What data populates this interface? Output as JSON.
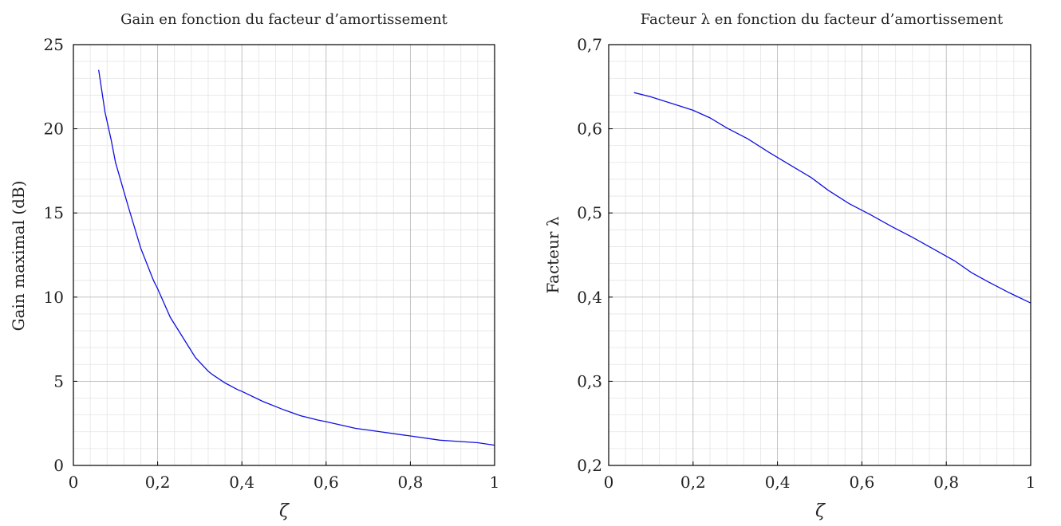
{
  "chart_data": [
    {
      "type": "line",
      "title": "Gain en fonction du facteur d’amortissement",
      "xlabel": "ζ",
      "ylabel": "Gain maximal (dB)",
      "xlim": [
        0,
        1
      ],
      "ylim": [
        0,
        25
      ],
      "grid": true,
      "minor_grid": true,
      "x_ticks": [
        "0",
        "0,2",
        "0,4",
        "0,6",
        "0,8",
        "1"
      ],
      "y_ticks": [
        "0",
        "5",
        "10",
        "15",
        "20",
        "25"
      ],
      "series": [
        {
          "color": "#1010e0",
          "x": [
            0.06,
            0.075,
            0.09,
            0.1,
            0.13,
            0.16,
            0.19,
            0.2,
            0.23,
            0.26,
            0.29,
            0.32,
            0.33,
            0.36,
            0.39,
            0.4,
            0.45,
            0.5,
            0.54,
            0.58,
            0.6,
            0.67,
            0.7,
            0.8,
            0.87,
            0.9,
            0.96,
            1.0
          ],
          "y": [
            23.5,
            21.0,
            19.3,
            18.0,
            15.4,
            12.9,
            11.0,
            10.5,
            8.8,
            7.6,
            6.4,
            5.6,
            5.4,
            4.9,
            4.5,
            4.4,
            3.8,
            3.3,
            2.95,
            2.7,
            2.6,
            2.2,
            2.1,
            1.75,
            1.5,
            1.45,
            1.35,
            1.2
          ]
        }
      ]
    },
    {
      "type": "line",
      "title": "Facteur λ en fonction du facteur d’amortissement",
      "xlabel": "ζ",
      "ylabel": "Facteur λ",
      "xlim": [
        0,
        1
      ],
      "ylim": [
        0.2,
        0.7
      ],
      "grid": true,
      "minor_grid": true,
      "x_ticks": [
        "0",
        "0,2",
        "0,4",
        "0,6",
        "0,8",
        "1"
      ],
      "y_ticks": [
        "0,2",
        "0,3",
        "0,4",
        "0,5",
        "0,6",
        "0,7"
      ],
      "series": [
        {
          "color": "#1010e0",
          "x": [
            0.06,
            0.1,
            0.15,
            0.2,
            0.24,
            0.28,
            0.33,
            0.38,
            0.43,
            0.48,
            0.52,
            0.57,
            0.62,
            0.67,
            0.72,
            0.77,
            0.82,
            0.86,
            0.9,
            0.95,
            1.0
          ],
          "y": [
            0.643,
            0.638,
            0.63,
            0.622,
            0.613,
            0.601,
            0.588,
            0.572,
            0.557,
            0.542,
            0.527,
            0.511,
            0.498,
            0.484,
            0.471,
            0.457,
            0.443,
            0.429,
            0.418,
            0.405,
            0.393
          ]
        }
      ]
    }
  ]
}
